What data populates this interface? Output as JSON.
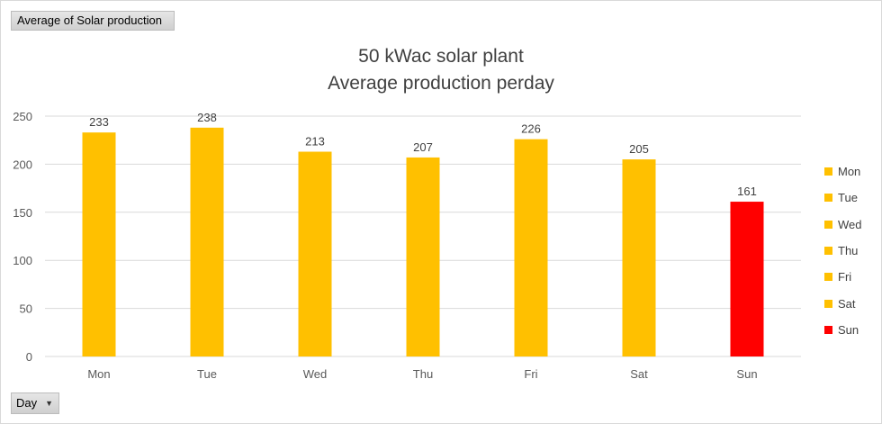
{
  "pivot": {
    "value_field_label": "Average of Solar production",
    "axis_field_label": "Day",
    "dropdown_icon": "chevron-down-icon"
  },
  "colors": {
    "weekday": "#FFC000",
    "sunday": "#FF0000",
    "grid": "#d9d9d9",
    "text": "#595959"
  },
  "chart_data": {
    "type": "bar",
    "title": [
      "50 kWac solar plant",
      "Average production perday"
    ],
    "categories": [
      "Mon",
      "Tue",
      "Wed",
      "Thu",
      "Fri",
      "Sat",
      "Sun"
    ],
    "values": [
      233,
      238,
      213,
      207,
      226,
      205,
      161
    ],
    "bar_colors": [
      "#FFC000",
      "#FFC000",
      "#FFC000",
      "#FFC000",
      "#FFC000",
      "#FFC000",
      "#FF0000"
    ],
    "ylim": [
      0,
      250
    ],
    "yticks": [
      0,
      50,
      100,
      150,
      200,
      250
    ],
    "grid": true,
    "legend_position": "right",
    "legend": [
      "Mon",
      "Tue",
      "Wed",
      "Thu",
      "Fri",
      "Sat",
      "Sun"
    ],
    "xlabel": "",
    "ylabel": ""
  }
}
